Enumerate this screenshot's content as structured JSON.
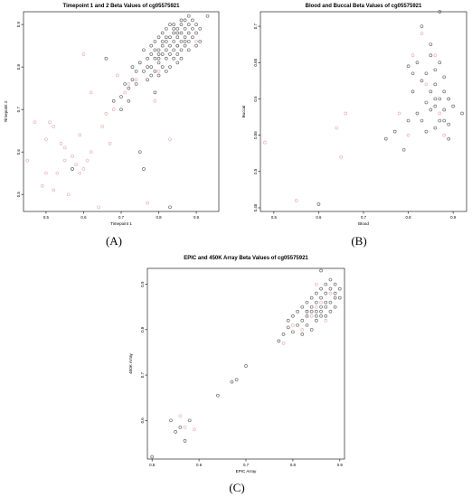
{
  "panel_labels": [
    "(A)",
    "(B)",
    "(C)"
  ],
  "colors": {
    "tissue_point": "#555555",
    "other_point": "#e8a7b0"
  },
  "chart_data": [
    {
      "type": "scatter",
      "title": "Timepoint 1 and 2 Beta Values of cg05575921",
      "xlabel": "Timepoint 1",
      "ylabel": "Timepoint 2",
      "xlim": [
        0.44,
        0.96
      ],
      "ylim": [
        0.46,
        0.93
      ],
      "xticks": [
        0.5,
        0.6,
        0.7,
        0.8,
        0.9
      ],
      "yticks": [
        0.5,
        0.6,
        0.7,
        0.8,
        0.9
      ],
      "grid": false,
      "series": [
        {
          "color": "#e8a7b0",
          "points": [
            [
              0.45,
              0.58
            ],
            [
              0.47,
              0.67
            ],
            [
              0.49,
              0.52
            ],
            [
              0.5,
              0.63
            ],
            [
              0.5,
              0.55
            ],
            [
              0.51,
              0.67
            ],
            [
              0.52,
              0.66
            ],
            [
              0.52,
              0.51
            ],
            [
              0.53,
              0.55
            ],
            [
              0.54,
              0.62
            ],
            [
              0.55,
              0.58
            ],
            [
              0.55,
              0.61
            ],
            [
              0.56,
              0.5
            ],
            [
              0.57,
              0.56
            ],
            [
              0.57,
              0.59
            ],
            [
              0.58,
              0.57
            ],
            [
              0.59,
              0.55
            ],
            [
              0.59,
              0.64
            ],
            [
              0.6,
              0.56
            ],
            [
              0.6,
              0.83
            ],
            [
              0.61,
              0.58
            ],
            [
              0.62,
              0.6
            ],
            [
              0.62,
              0.74
            ],
            [
              0.64,
              0.47
            ],
            [
              0.65,
              0.66
            ],
            [
              0.66,
              0.69
            ],
            [
              0.67,
              0.62
            ],
            [
              0.68,
              0.7
            ],
            [
              0.69,
              0.78
            ],
            [
              0.71,
              0.74
            ],
            [
              0.72,
              0.76
            ],
            [
              0.74,
              0.77
            ],
            [
              0.75,
              0.81
            ],
            [
              0.77,
              0.48
            ],
            [
              0.79,
              0.72
            ],
            [
              0.8,
              0.79
            ],
            [
              0.83,
              0.63
            ],
            [
              0.85,
              0.85
            ],
            [
              0.9,
              0.86
            ]
          ]
        },
        {
          "color": "#555555",
          "points": [
            [
              0.57,
              0.56
            ],
            [
              0.66,
              0.82
            ],
            [
              0.68,
              0.72
            ],
            [
              0.7,
              0.7
            ],
            [
              0.7,
              0.73
            ],
            [
              0.71,
              0.76
            ],
            [
              0.72,
              0.75
            ],
            [
              0.73,
              0.8
            ],
            [
              0.73,
              0.77
            ],
            [
              0.74,
              0.79
            ],
            [
              0.75,
              0.81
            ],
            [
              0.75,
              0.6
            ],
            [
              0.76,
              0.56
            ],
            [
              0.76,
              0.84
            ],
            [
              0.76,
              0.79
            ],
            [
              0.77,
              0.82
            ],
            [
              0.77,
              0.77
            ],
            [
              0.78,
              0.83
            ],
            [
              0.78,
              0.8
            ],
            [
              0.78,
              0.85
            ],
            [
              0.79,
              0.82
            ],
            [
              0.79,
              0.79
            ],
            [
              0.79,
              0.86
            ],
            [
              0.8,
              0.84
            ],
            [
              0.8,
              0.81
            ],
            [
              0.8,
              0.87
            ],
            [
              0.8,
              0.78
            ],
            [
              0.81,
              0.85
            ],
            [
              0.81,
              0.83
            ],
            [
              0.81,
              0.8
            ],
            [
              0.81,
              0.88
            ],
            [
              0.82,
              0.86
            ],
            [
              0.82,
              0.84
            ],
            [
              0.82,
              0.82
            ],
            [
              0.82,
              0.89
            ],
            [
              0.83,
              0.85
            ],
            [
              0.83,
              0.87
            ],
            [
              0.83,
              0.83
            ],
            [
              0.83,
              0.47
            ],
            [
              0.84,
              0.88
            ],
            [
              0.84,
              0.86
            ],
            [
              0.84,
              0.84
            ],
            [
              0.84,
              0.9
            ],
            [
              0.85,
              0.87
            ],
            [
              0.85,
              0.89
            ],
            [
              0.85,
              0.85
            ],
            [
              0.85,
              0.83
            ],
            [
              0.86,
              0.88
            ],
            [
              0.86,
              0.9
            ],
            [
              0.86,
              0.86
            ],
            [
              0.86,
              0.91
            ],
            [
              0.87,
              0.89
            ],
            [
              0.87,
              0.87
            ],
            [
              0.87,
              0.85
            ],
            [
              0.88,
              0.88
            ],
            [
              0.88,
              0.9
            ],
            [
              0.88,
              0.86
            ],
            [
              0.89,
              0.89
            ],
            [
              0.89,
              0.87
            ],
            [
              0.9,
              0.9
            ],
            [
              0.9,
              0.88
            ],
            [
              0.91,
              0.86
            ],
            [
              0.91,
              0.89
            ],
            [
              0.93,
              0.92
            ],
            [
              0.83,
              0.8
            ],
            [
              0.79,
              0.74
            ],
            [
              0.8,
              0.83
            ],
            [
              0.82,
              0.87
            ],
            [
              0.84,
              0.82
            ],
            [
              0.86,
              0.84
            ],
            [
              0.87,
              0.91
            ],
            [
              0.85,
              0.81
            ],
            [
              0.78,
              0.78
            ],
            [
              0.81,
              0.86
            ],
            [
              0.83,
              0.9
            ],
            [
              0.86,
              0.82
            ],
            [
              0.88,
              0.84
            ],
            [
              0.89,
              0.91
            ],
            [
              0.9,
              0.85
            ],
            [
              0.84,
              0.89
            ],
            [
              0.82,
              0.79
            ],
            [
              0.8,
              0.82
            ],
            [
              0.77,
              0.8
            ],
            [
              0.79,
              0.84
            ],
            [
              0.85,
              0.88
            ],
            [
              0.87,
              0.86
            ],
            [
              0.88,
              0.92
            ],
            [
              0.74,
              0.76
            ],
            [
              0.72,
              0.72
            ]
          ]
        }
      ]
    },
    {
      "type": "scatter",
      "title": "Blood and Buccal Beta Values of cg05575921",
      "xlabel": "Blood",
      "ylabel": "Buccal",
      "xlim": [
        0.47,
        0.93
      ],
      "ylim": [
        0.445,
        0.72
      ],
      "xticks": [
        0.5,
        0.6,
        0.7,
        0.8,
        0.9
      ],
      "yticks": [
        0.45,
        0.5,
        0.55,
        0.6,
        0.65,
        0.7
      ],
      "grid": false,
      "series": [
        {
          "color": "#e8a7b0",
          "points": [
            [
              0.48,
              0.54
            ],
            [
              0.55,
              0.46
            ],
            [
              0.64,
              0.56
            ],
            [
              0.65,
              0.52
            ],
            [
              0.66,
              0.58
            ],
            [
              0.78,
              0.58
            ],
            [
              0.8,
              0.55
            ],
            [
              0.81,
              0.66
            ],
            [
              0.83,
              0.69
            ],
            [
              0.84,
              0.62
            ],
            [
              0.86,
              0.66
            ],
            [
              0.87,
              0.58
            ],
            [
              0.88,
              0.55
            ],
            [
              0.89,
              0.6
            ]
          ]
        },
        {
          "color": "#555555",
          "points": [
            [
              0.6,
              0.455
            ],
            [
              0.75,
              0.545
            ],
            [
              0.77,
              0.555
            ],
            [
              0.79,
              0.53
            ],
            [
              0.8,
              0.57
            ],
            [
              0.8,
              0.645
            ],
            [
              0.81,
              0.61
            ],
            [
              0.81,
              0.635
            ],
            [
              0.82,
              0.58
            ],
            [
              0.82,
              0.65
            ],
            [
              0.83,
              0.57
            ],
            [
              0.83,
              0.625
            ],
            [
              0.83,
              0.7
            ],
            [
              0.84,
              0.595
            ],
            [
              0.84,
              0.635
            ],
            [
              0.85,
              0.585
            ],
            [
              0.85,
              0.61
            ],
            [
              0.85,
              0.66
            ],
            [
              0.85,
              0.675
            ],
            [
              0.86,
              0.56
            ],
            [
              0.86,
              0.59
            ],
            [
              0.86,
              0.62
            ],
            [
              0.86,
              0.64
            ],
            [
              0.87,
              0.57
            ],
            [
              0.87,
              0.6
            ],
            [
              0.87,
              0.65
            ],
            [
              0.87,
              0.72
            ],
            [
              0.88,
              0.585
            ],
            [
              0.88,
              0.61
            ],
            [
              0.88,
              0.63
            ],
            [
              0.88,
              0.57
            ],
            [
              0.89,
              0.545
            ],
            [
              0.89,
              0.6
            ],
            [
              0.89,
              0.565
            ],
            [
              0.9,
              0.59
            ],
            [
              0.92,
              0.58
            ],
            [
              0.84,
              0.555
            ],
            [
              0.86,
              0.6
            ]
          ]
        }
      ]
    },
    {
      "type": "scatter",
      "title": "EPIC and 450K Array Beta Values of cg05575921",
      "xlabel": "EPIC Array",
      "ylabel": "450K Array",
      "xlim": [
        0.49,
        0.91
      ],
      "ylim": [
        0.515,
        0.935
      ],
      "xticks": [
        0.5,
        0.6,
        0.7,
        0.8,
        0.9
      ],
      "yticks": [
        0.6,
        0.7,
        0.8,
        0.9
      ],
      "grid": false,
      "series": [
        {
          "color": "#e8a7b0",
          "points": [
            [
              0.56,
              0.61
            ],
            [
              0.57,
              0.585
            ],
            [
              0.59,
              0.58
            ],
            [
              0.78,
              0.77
            ],
            [
              0.8,
              0.81
            ],
            [
              0.82,
              0.8
            ],
            [
              0.83,
              0.84
            ],
            [
              0.84,
              0.83
            ],
            [
              0.85,
              0.85
            ],
            [
              0.86,
              0.86
            ],
            [
              0.87,
              0.82
            ],
            [
              0.88,
              0.88
            ],
            [
              0.85,
              0.9
            ]
          ]
        },
        {
          "color": "#555555",
          "points": [
            [
              0.5,
              0.52
            ],
            [
              0.54,
              0.6
            ],
            [
              0.55,
              0.575
            ],
            [
              0.56,
              0.585
            ],
            [
              0.57,
              0.555
            ],
            [
              0.58,
              0.6
            ],
            [
              0.64,
              0.655
            ],
            [
              0.67,
              0.685
            ],
            [
              0.68,
              0.69
            ],
            [
              0.7,
              0.72
            ],
            [
              0.77,
              0.775
            ],
            [
              0.78,
              0.79
            ],
            [
              0.79,
              0.805
            ],
            [
              0.79,
              0.82
            ],
            [
              0.8,
              0.795
            ],
            [
              0.8,
              0.83
            ],
            [
              0.81,
              0.81
            ],
            [
              0.81,
              0.84
            ],
            [
              0.82,
              0.82
            ],
            [
              0.82,
              0.85
            ],
            [
              0.82,
              0.79
            ],
            [
              0.83,
              0.83
            ],
            [
              0.83,
              0.86
            ],
            [
              0.83,
              0.81
            ],
            [
              0.84,
              0.84
            ],
            [
              0.84,
              0.87
            ],
            [
              0.84,
              0.8
            ],
            [
              0.85,
              0.83
            ],
            [
              0.85,
              0.86
            ],
            [
              0.85,
              0.88
            ],
            [
              0.85,
              0.82
            ],
            [
              0.86,
              0.84
            ],
            [
              0.86,
              0.87
            ],
            [
              0.86,
              0.89
            ],
            [
              0.86,
              0.83
            ],
            [
              0.86,
              0.93
            ],
            [
              0.87,
              0.85
            ],
            [
              0.87,
              0.88
            ],
            [
              0.87,
              0.9
            ],
            [
              0.87,
              0.83
            ],
            [
              0.88,
              0.86
            ],
            [
              0.88,
              0.89
            ],
            [
              0.88,
              0.84
            ],
            [
              0.88,
              0.91
            ],
            [
              0.89,
              0.87
            ],
            [
              0.89,
              0.85
            ],
            [
              0.89,
              0.9
            ],
            [
              0.89,
              0.88
            ],
            [
              0.9,
              0.87
            ],
            [
              0.9,
              0.89
            ],
            [
              0.84,
              0.85
            ],
            [
              0.86,
              0.85
            ],
            [
              0.87,
              0.86
            ],
            [
              0.83,
              0.84
            ],
            [
              0.85,
              0.84
            ]
          ]
        }
      ]
    }
  ]
}
